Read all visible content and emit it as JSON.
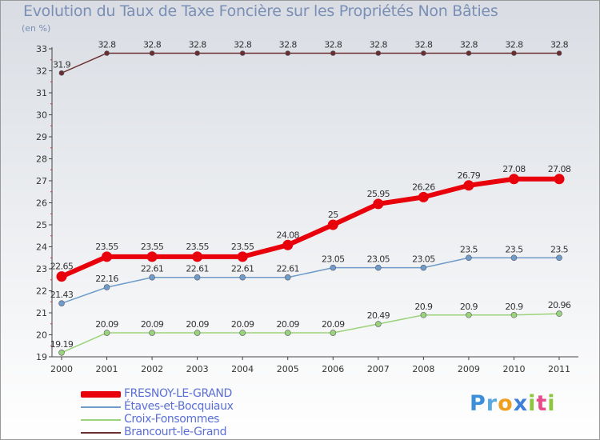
{
  "title": "Evolution du Taux de Taxe Foncière sur les Propriétés Non Bâties",
  "unit": "(en %)",
  "logo": [
    "P",
    "r",
    "o",
    "x",
    "i",
    "t",
    "i"
  ],
  "chart_data": {
    "type": "line",
    "title": "Evolution du Taux de Taxe Foncière sur les Propriétés Non Bâties",
    "ylabel": "(en %)",
    "ylim": [
      19,
      33
    ],
    "yticks": [
      19,
      20,
      21,
      22,
      23,
      24,
      25,
      26,
      27,
      28,
      29,
      30,
      31,
      32,
      33
    ],
    "x": [
      "2000",
      "2001",
      "2002",
      "2003",
      "2004",
      "2005",
      "2006",
      "2007",
      "2008",
      "2009",
      "2010",
      "2011"
    ],
    "series": [
      {
        "name": "Brancourt-le-Grand",
        "color": "#6b2e2e",
        "width": 1.5,
        "marker": 3,
        "values": [
          31.9,
          32.8,
          32.8,
          32.8,
          32.8,
          32.8,
          32.8,
          32.8,
          32.8,
          32.8,
          32.8,
          32.8
        ],
        "labels": [
          "31.9",
          "32.8",
          "32.8",
          "32.8",
          "32.8",
          "32.8",
          "32.8",
          "32.8",
          "32.8",
          "32.8",
          "32.8",
          "32.8"
        ]
      },
      {
        "name": "Croix-Fonsommes",
        "color": "#9bd37a",
        "width": 1.5,
        "marker": 3.5,
        "values": [
          19.19,
          20.09,
          20.09,
          20.09,
          20.09,
          20.09,
          20.09,
          20.49,
          20.9,
          20.9,
          20.9,
          20.96
        ],
        "labels": [
          "19.19",
          "20.09",
          "20.09",
          "20.09",
          "20.09",
          "20.09",
          "20.09",
          "20.49",
          "20.9",
          "20.9",
          "20.9",
          "20.96"
        ]
      },
      {
        "name": "Étaves-et-Bocquiaux",
        "color": "#6f9bc8",
        "width": 1.5,
        "marker": 3.5,
        "values": [
          21.43,
          22.16,
          22.61,
          22.61,
          22.61,
          22.61,
          23.05,
          23.05,
          23.05,
          23.5,
          23.5,
          23.5
        ],
        "labels": [
          "21.43",
          "22.16",
          "22.61",
          "22.61",
          "22.61",
          "22.61",
          "23.05",
          "23.05",
          "23.05",
          "23.5",
          "23.5",
          "23.5"
        ]
      },
      {
        "name": "FRESNOY-LE-GRAND",
        "color": "#e8000a",
        "width": 6,
        "marker": 6.5,
        "values": [
          22.65,
          23.55,
          23.55,
          23.55,
          23.55,
          24.08,
          25,
          25.95,
          26.26,
          26.79,
          27.08,
          27.08
        ],
        "labels": [
          "22.65",
          "23.55",
          "23.55",
          "23.55",
          "23.55",
          "24.08",
          "25",
          "25.95",
          "26.26",
          "26.79",
          "27.08",
          "27.08"
        ]
      }
    ],
    "legend": {
      "position": "bottom-left"
    }
  }
}
